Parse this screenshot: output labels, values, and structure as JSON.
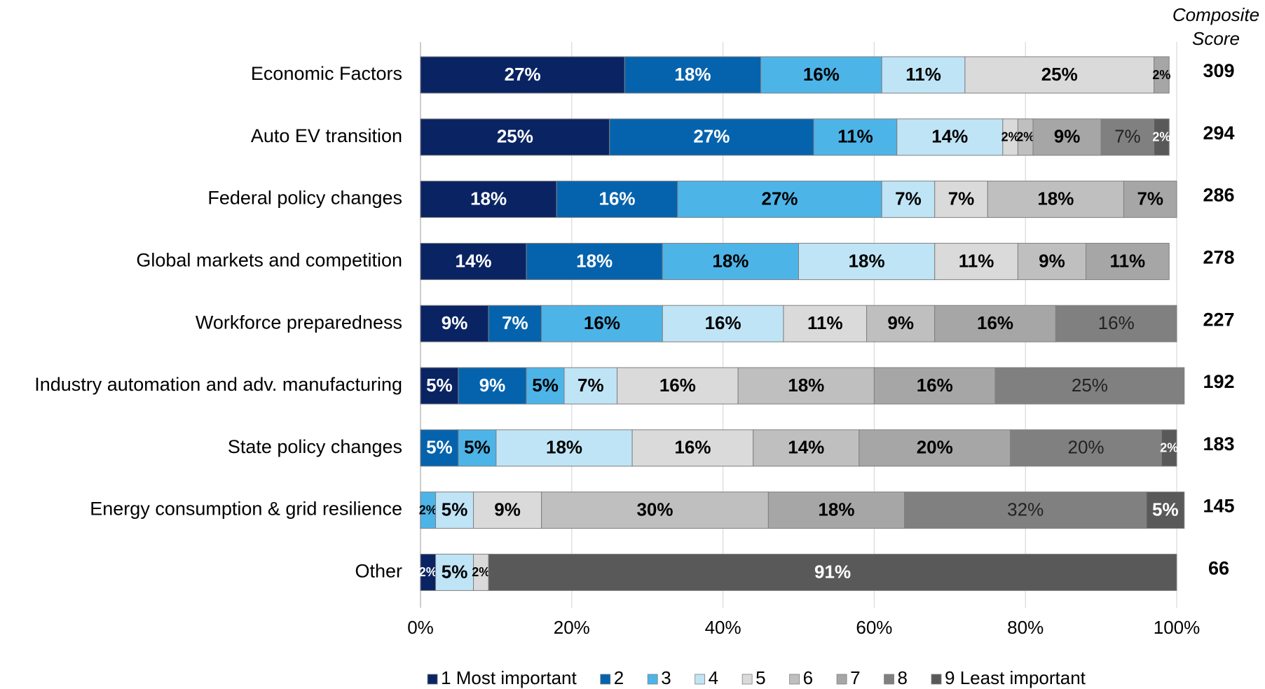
{
  "chart_data": {
    "type": "stacked_bar_horizontal",
    "categories": [
      "Economic Factors",
      "Auto EV transition",
      "Federal policy changes",
      "Global markets and competition",
      "Workforce preparedness",
      "Industry automation and adv. manufacturing",
      "State policy changes",
      "Energy consumption & grid resilience",
      "Other"
    ],
    "series": [
      {
        "name": "1 Most important",
        "color": "#0a2463",
        "values": [
          27,
          25,
          18,
          14,
          9,
          5,
          null,
          null,
          2
        ],
        "value_labels": [
          "27%",
          "25%",
          "18%",
          "14%",
          "9%",
          "5%",
          null,
          null,
          "2%"
        ]
      },
      {
        "name": "2",
        "color": "#0563ad",
        "values": [
          18,
          27,
          16,
          18,
          7,
          9,
          5,
          null,
          null
        ],
        "value_labels": [
          "18%",
          "27%",
          "16%",
          "18%",
          "7%",
          "9%",
          "5%",
          null,
          null
        ]
      },
      {
        "name": "3",
        "color": "#4db4e8",
        "values": [
          16,
          11,
          27,
          18,
          16,
          5,
          5,
          2,
          null
        ],
        "value_labels": [
          "16%",
          "11%",
          "27%",
          "18%",
          "16%",
          "5%",
          "5%",
          "2%",
          null
        ]
      },
      {
        "name": "4",
        "color": "#bfe4f6",
        "values": [
          11,
          14,
          7,
          18,
          16,
          7,
          18,
          5,
          5
        ],
        "value_labels": [
          "11%",
          "14%",
          "7%",
          "18%",
          "16%",
          "7%",
          "18%",
          "5%",
          "5%"
        ]
      },
      {
        "name": "5",
        "color": "#dadada",
        "values": [
          25,
          2,
          7,
          11,
          11,
          16,
          16,
          9,
          2
        ],
        "value_labels": [
          "25%",
          "2%",
          "7%",
          "11%",
          "11%",
          "16%",
          "16%",
          "9%",
          "2%"
        ]
      },
      {
        "name": "6",
        "color": "#bfbfbf",
        "values": [
          null,
          2,
          18,
          9,
          9,
          18,
          14,
          30,
          null
        ],
        "value_labels": [
          null,
          "2%",
          "18%",
          "9%",
          "9%",
          "18%",
          "14%",
          "30%",
          null
        ]
      },
      {
        "name": "7",
        "color": "#a6a6a6",
        "values": [
          2,
          9,
          7,
          11,
          16,
          16,
          20,
          18,
          null
        ],
        "value_labels": [
          "2%",
          "9%",
          "7%",
          "11%",
          "16%",
          "16%",
          "20%",
          "18%",
          null
        ]
      },
      {
        "name": "8",
        "color": "#808080",
        "values": [
          null,
          7,
          null,
          null,
          16,
          25,
          20,
          32,
          null
        ],
        "value_labels": [
          null,
          "7%",
          null,
          null,
          "16%",
          "25%",
          "20%",
          "32%",
          null
        ]
      },
      {
        "name": "9 Least important",
        "color": "#595959",
        "values": [
          null,
          2,
          null,
          null,
          null,
          null,
          2,
          5,
          91
        ],
        "value_labels": [
          null,
          "2%",
          null,
          null,
          null,
          null,
          "2%",
          "5%",
          "91%"
        ]
      }
    ],
    "composite_header": "Composite Score",
    "composite_scores": [
      309,
      294,
      286,
      278,
      227,
      192,
      183,
      145,
      66
    ],
    "xlim": [
      0,
      100
    ],
    "xticks": [
      {
        "value": 0,
        "label": "0%"
      },
      {
        "value": 20,
        "label": "20%"
      },
      {
        "value": 40,
        "label": "40%"
      },
      {
        "value": 60,
        "label": "60%"
      },
      {
        "value": 80,
        "label": "80%"
      },
      {
        "value": 100,
        "label": "100%"
      }
    ],
    "grid": true,
    "legend": "bottom"
  }
}
